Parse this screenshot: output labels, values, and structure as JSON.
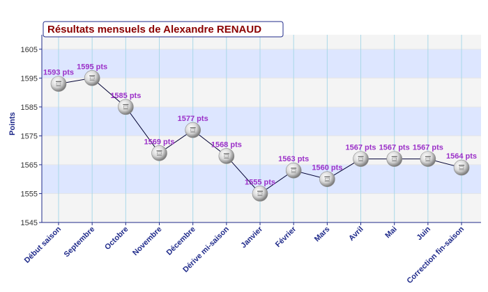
{
  "chart_data": {
    "type": "line",
    "title": "Résultats mensuels de Alexandre RENAUD",
    "ylabel": "Points",
    "xlabel": "",
    "ylim": [
      1545,
      1610
    ],
    "yticks": [
      1545,
      1555,
      1565,
      1575,
      1585,
      1595,
      1605
    ],
    "categories": [
      "Début saison",
      "Septembre",
      "Octobre",
      "Novembre",
      "Décembre",
      "Dérive mi-saison",
      "Janvier",
      "Février",
      "Mars",
      "Avril",
      "Mai",
      "Juin",
      "Correction fin-saison"
    ],
    "values": [
      1593,
      1595,
      1585,
      1569,
      1577,
      1568,
      1555,
      1563,
      1560,
      1567,
      1567,
      1567,
      1564
    ],
    "labels": [
      "1593 pts",
      "1595 pts",
      "1585 pts",
      "1569 pts",
      "1577 pts",
      "1568 pts",
      "1555 pts",
      "1563 pts",
      "1560 pts",
      "1567 pts",
      "1567 pts",
      "1567 pts",
      "1564 pts"
    ],
    "grid": true,
    "colors": {
      "band_blue": "#dde6ff",
      "band_gray": "#f4f4f4",
      "grid_vertical": "#a9d8e8",
      "line": "#000033",
      "label": "#9b30c8",
      "axis_text": "#1f2a8a",
      "title": "#8b0000"
    },
    "marker_icon": "ping-pong-ball-icon"
  }
}
